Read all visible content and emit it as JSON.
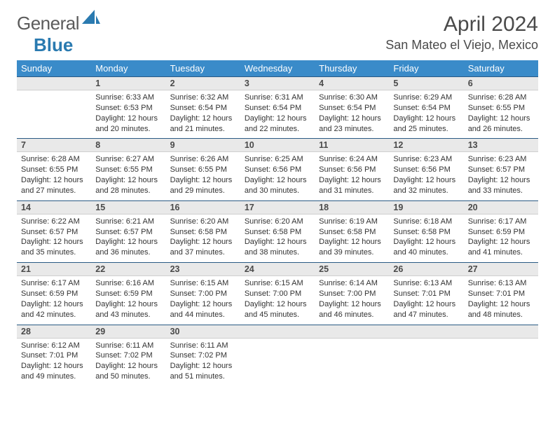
{
  "logo": {
    "text1": "General",
    "text2": "Blue"
  },
  "header": {
    "title": "April 2024",
    "location": "San Mateo el Viejo, Mexico"
  },
  "colors": {
    "header_bg": "#3a8bc9",
    "header_text": "#ffffff",
    "daynum_bg": "#e9e9e9",
    "rule": "#2a5a84",
    "body_text": "#333333"
  },
  "dayNames": [
    "Sunday",
    "Monday",
    "Tuesday",
    "Wednesday",
    "Thursday",
    "Friday",
    "Saturday"
  ],
  "startOffset": 1,
  "daysInMonth": 30,
  "cells": {
    "1": {
      "sunrise": "6:33 AM",
      "sunset": "6:53 PM",
      "daylight": "12 hours and 20 minutes."
    },
    "2": {
      "sunrise": "6:32 AM",
      "sunset": "6:54 PM",
      "daylight": "12 hours and 21 minutes."
    },
    "3": {
      "sunrise": "6:31 AM",
      "sunset": "6:54 PM",
      "daylight": "12 hours and 22 minutes."
    },
    "4": {
      "sunrise": "6:30 AM",
      "sunset": "6:54 PM",
      "daylight": "12 hours and 23 minutes."
    },
    "5": {
      "sunrise": "6:29 AM",
      "sunset": "6:54 PM",
      "daylight": "12 hours and 25 minutes."
    },
    "6": {
      "sunrise": "6:28 AM",
      "sunset": "6:55 PM",
      "daylight": "12 hours and 26 minutes."
    },
    "7": {
      "sunrise": "6:28 AM",
      "sunset": "6:55 PM",
      "daylight": "12 hours and 27 minutes."
    },
    "8": {
      "sunrise": "6:27 AM",
      "sunset": "6:55 PM",
      "daylight": "12 hours and 28 minutes."
    },
    "9": {
      "sunrise": "6:26 AM",
      "sunset": "6:55 PM",
      "daylight": "12 hours and 29 minutes."
    },
    "10": {
      "sunrise": "6:25 AM",
      "sunset": "6:56 PM",
      "daylight": "12 hours and 30 minutes."
    },
    "11": {
      "sunrise": "6:24 AM",
      "sunset": "6:56 PM",
      "daylight": "12 hours and 31 minutes."
    },
    "12": {
      "sunrise": "6:23 AM",
      "sunset": "6:56 PM",
      "daylight": "12 hours and 32 minutes."
    },
    "13": {
      "sunrise": "6:23 AM",
      "sunset": "6:57 PM",
      "daylight": "12 hours and 33 minutes."
    },
    "14": {
      "sunrise": "6:22 AM",
      "sunset": "6:57 PM",
      "daylight": "12 hours and 35 minutes."
    },
    "15": {
      "sunrise": "6:21 AM",
      "sunset": "6:57 PM",
      "daylight": "12 hours and 36 minutes."
    },
    "16": {
      "sunrise": "6:20 AM",
      "sunset": "6:58 PM",
      "daylight": "12 hours and 37 minutes."
    },
    "17": {
      "sunrise": "6:20 AM",
      "sunset": "6:58 PM",
      "daylight": "12 hours and 38 minutes."
    },
    "18": {
      "sunrise": "6:19 AM",
      "sunset": "6:58 PM",
      "daylight": "12 hours and 39 minutes."
    },
    "19": {
      "sunrise": "6:18 AM",
      "sunset": "6:58 PM",
      "daylight": "12 hours and 40 minutes."
    },
    "20": {
      "sunrise": "6:17 AM",
      "sunset": "6:59 PM",
      "daylight": "12 hours and 41 minutes."
    },
    "21": {
      "sunrise": "6:17 AM",
      "sunset": "6:59 PM",
      "daylight": "12 hours and 42 minutes."
    },
    "22": {
      "sunrise": "6:16 AM",
      "sunset": "6:59 PM",
      "daylight": "12 hours and 43 minutes."
    },
    "23": {
      "sunrise": "6:15 AM",
      "sunset": "7:00 PM",
      "daylight": "12 hours and 44 minutes."
    },
    "24": {
      "sunrise": "6:15 AM",
      "sunset": "7:00 PM",
      "daylight": "12 hours and 45 minutes."
    },
    "25": {
      "sunrise": "6:14 AM",
      "sunset": "7:00 PM",
      "daylight": "12 hours and 46 minutes."
    },
    "26": {
      "sunrise": "6:13 AM",
      "sunset": "7:01 PM",
      "daylight": "12 hours and 47 minutes."
    },
    "27": {
      "sunrise": "6:13 AM",
      "sunset": "7:01 PM",
      "daylight": "12 hours and 48 minutes."
    },
    "28": {
      "sunrise": "6:12 AM",
      "sunset": "7:01 PM",
      "daylight": "12 hours and 49 minutes."
    },
    "29": {
      "sunrise": "6:11 AM",
      "sunset": "7:02 PM",
      "daylight": "12 hours and 50 minutes."
    },
    "30": {
      "sunrise": "6:11 AM",
      "sunset": "7:02 PM",
      "daylight": "12 hours and 51 minutes."
    }
  },
  "labels": {
    "sunrise": "Sunrise:",
    "sunset": "Sunset:",
    "daylight": "Daylight:"
  }
}
